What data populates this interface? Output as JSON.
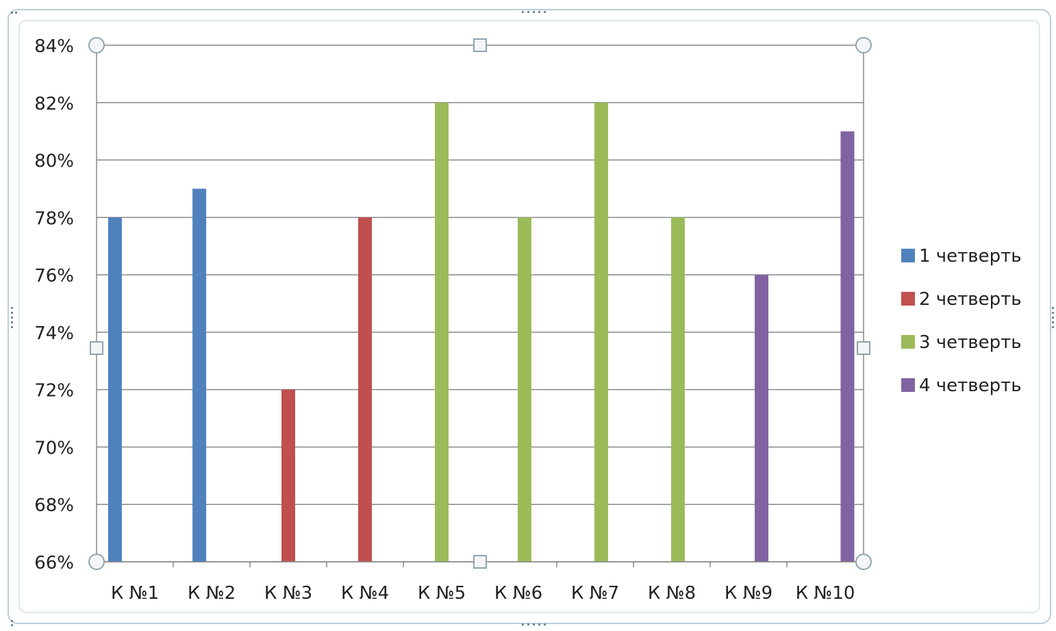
{
  "chart_data": {
    "type": "bar",
    "categories": [
      "К №1",
      "К №2",
      "К №3",
      "К №4",
      "К №5",
      "К №6",
      "К №7",
      "К №8",
      "К №9",
      "К №10"
    ],
    "series": [
      {
        "name": "1 четверть",
        "color": "#4F81BD",
        "values": [
          78,
          79,
          null,
          null,
          null,
          null,
          null,
          null,
          null,
          null
        ]
      },
      {
        "name": "2 четверть",
        "color": "#C0504D",
        "values": [
          null,
          null,
          72,
          78,
          null,
          null,
          null,
          null,
          null,
          null
        ]
      },
      {
        "name": "3 четверть",
        "color": "#9BBB59",
        "values": [
          null,
          null,
          null,
          null,
          82,
          78,
          82,
          78,
          null,
          null
        ]
      },
      {
        "name": "4 четверть",
        "color": "#8064A2",
        "values": [
          null,
          null,
          null,
          null,
          null,
          null,
          null,
          null,
          76,
          81
        ]
      }
    ],
    "ylim": [
      66,
      84
    ],
    "y_ticks": [
      66,
      68,
      70,
      72,
      74,
      76,
      78,
      80,
      82,
      84
    ],
    "y_tick_suffix": "%",
    "grid": true,
    "legend_position": "right"
  }
}
